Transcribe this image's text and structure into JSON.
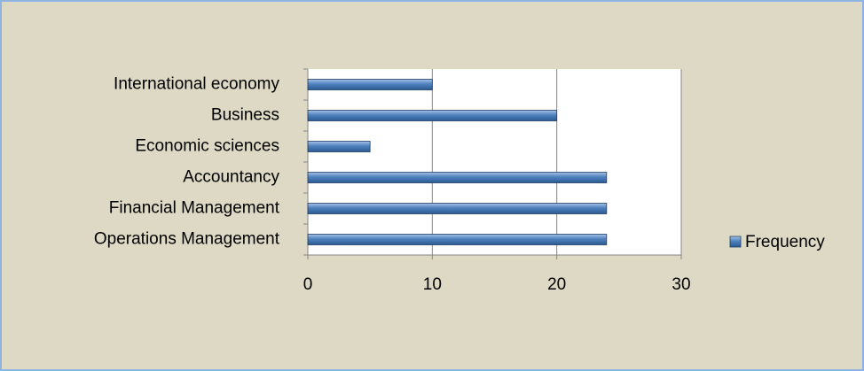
{
  "chart_data": {
    "type": "bar",
    "orientation": "horizontal",
    "categories": [
      "International economy",
      "Business",
      "Economic sciences",
      "Accountancy",
      "Financial Management",
      "Operations Management"
    ],
    "series": [
      {
        "name": "Frequency",
        "color": "#4f81bd",
        "values": [
          10,
          20,
          5,
          24,
          24,
          24
        ]
      }
    ],
    "xlim": [
      0,
      30
    ],
    "xticks": [
      0,
      10,
      20,
      30
    ],
    "grid": true,
    "legend": "right"
  }
}
